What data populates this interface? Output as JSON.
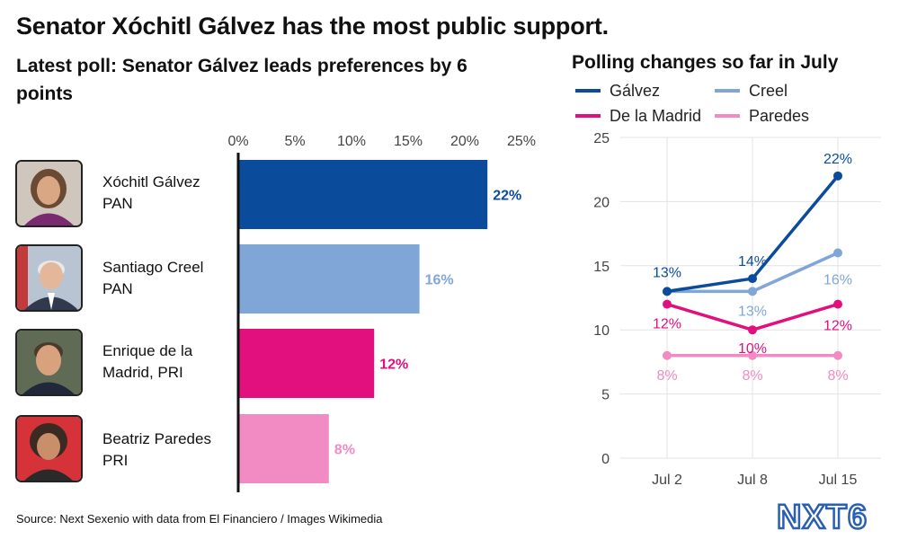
{
  "title": "Senator Xóchitl Gálvez has the most public support.",
  "source": "Source: Next Sexenio with data from El Financiero / Images Wikimedia",
  "logo_text": "NXT6",
  "chart_data": [
    {
      "type": "bar",
      "title": "Latest poll: Senator Gálvez leads preferences by 6 points",
      "orientation": "horizontal",
      "xlim": [
        0,
        25
      ],
      "ticks": [
        "0%",
        "5%",
        "10%",
        "15%",
        "20%",
        "25%"
      ],
      "categories": [
        {
          "name": "Xóchitl Gálvez",
          "party": "PAN",
          "value": 22,
          "label": "22%",
          "color": "#0a4c9b"
        },
        {
          "name": "Santiago Creel",
          "party": "PAN",
          "value": 16,
          "label": "16%",
          "color": "#80a6d8"
        },
        {
          "name": "Enrique de la",
          "party": "Madrid, PRI",
          "value": 12,
          "label": "12%",
          "color": "#e20f7f"
        },
        {
          "name": "Beatriz Paredes",
          "party": "PRI",
          "value": 8,
          "label": "8%",
          "color": "#f28ac4"
        }
      ]
    },
    {
      "type": "line",
      "title": "Polling changes so far in July",
      "x": [
        "Jul 2",
        "Jul 8",
        "Jul 15"
      ],
      "ylim": [
        0,
        25
      ],
      "yticks": [
        "0",
        "5",
        "10",
        "15",
        "20",
        "25"
      ],
      "grid": true,
      "legend": "top",
      "series": [
        {
          "name": "Gálvez",
          "values": [
            13,
            14,
            22
          ],
          "labels": [
            "13%",
            "14%",
            "22%"
          ],
          "color": "#0a4c9b"
        },
        {
          "name": "Creel",
          "values": [
            13,
            13,
            16
          ],
          "labels": [
            "",
            "13%",
            "16%"
          ],
          "color": "#80a6d8"
        },
        {
          "name": "De la Madrid",
          "values": [
            12,
            10,
            12
          ],
          "labels": [
            "12%",
            "10%",
            "12%"
          ],
          "color": "#e20f7f"
        },
        {
          "name": "Paredes",
          "values": [
            8,
            8,
            8
          ],
          "labels": [
            "8%",
            "8%",
            "8%"
          ],
          "color": "#f28ac4"
        }
      ]
    }
  ]
}
